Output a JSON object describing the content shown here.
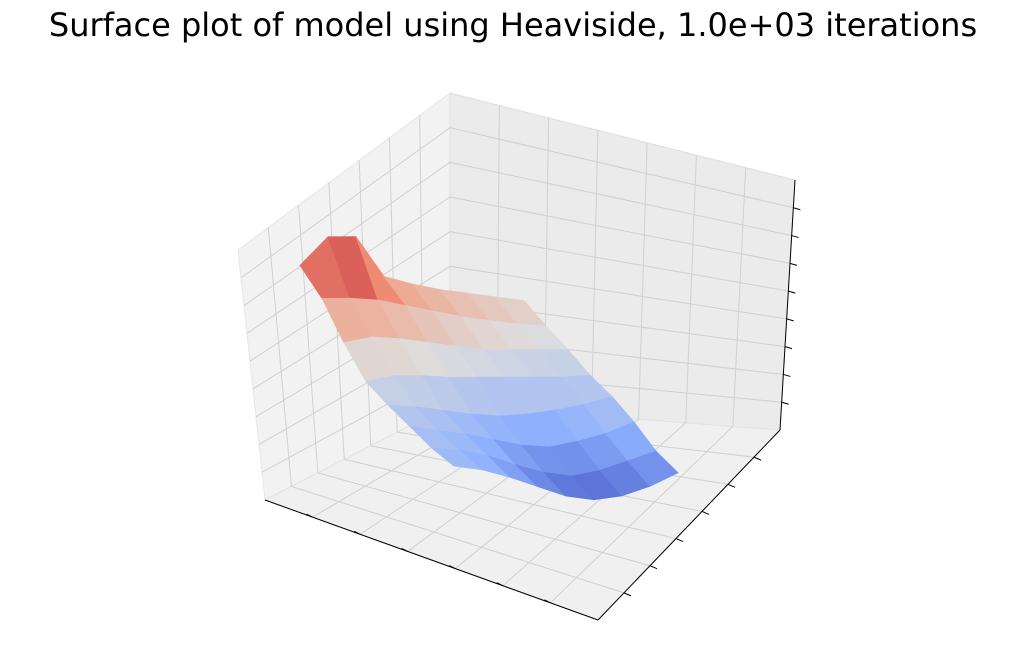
{
  "chart_data": {
    "type": "surface",
    "title": "Surface plot of model using Heaviside, 1.0e+03 iterations",
    "xlabel": "",
    "ylabel": "",
    "zlabel": "",
    "colormap": "coolwarm",
    "grid": true,
    "tick_labels_visible": false,
    "ticks": {
      "x": 6,
      "y": 6,
      "z": 8
    },
    "surface_rows": [
      [
        0.84,
        0.98,
        0.97,
        0.75,
        0.7,
        0.66,
        0.63,
        0.6,
        0.57
      ],
      [
        0.74,
        0.73,
        0.71,
        0.67,
        0.63,
        0.59,
        0.56,
        0.53,
        0.51
      ],
      [
        0.58,
        0.6,
        0.58,
        0.55,
        0.52,
        0.49,
        0.48,
        0.47,
        0.46
      ],
      [
        0.45,
        0.47,
        0.46,
        0.44,
        0.43,
        0.42,
        0.41,
        0.4,
        0.4
      ],
      [
        0.4,
        0.38,
        0.35,
        0.32,
        0.3,
        0.3,
        0.31,
        0.33,
        0.36
      ],
      [
        0.36,
        0.33,
        0.3,
        0.26,
        0.22,
        0.2,
        0.22,
        0.25,
        0.3
      ],
      [
        0.32,
        0.3,
        0.26,
        0.2,
        0.15,
        0.12,
        0.14,
        0.18,
        0.22
      ],
      [
        0.3,
        0.27,
        0.22,
        0.16,
        0.1,
        0.07,
        0.08,
        0.12,
        0.18
      ]
    ]
  }
}
